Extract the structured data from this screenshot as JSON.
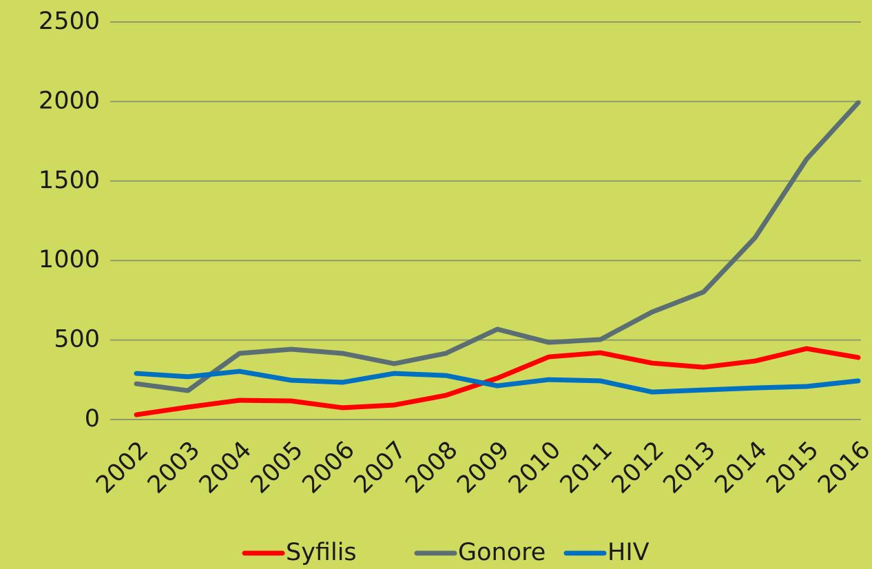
{
  "chart_data": {
    "type": "line",
    "categories": [
      "2002",
      "2003",
      "2004",
      "2005",
      "2006",
      "2007",
      "2008",
      "2009",
      "2010",
      "2011",
      "2012",
      "2013",
      "2014",
      "2015",
      "2016"
    ],
    "series": [
      {
        "name": "Syfilis",
        "color": "#ff0000",
        "values": [
          30,
          78,
          121,
          117,
          74,
          91,
          152,
          260,
          394,
          420,
          355,
          329,
          368,
          446,
          390
        ]
      },
      {
        "name": "Gonore",
        "color": "#5a6e73",
        "values": [
          225,
          182,
          416,
          442,
          416,
          351,
          416,
          568,
          485,
          503,
          676,
          802,
          1144,
          1638,
          1993
        ]
      },
      {
        "name": "HIV",
        "color": "#0070c0",
        "values": [
          290,
          269,
          303,
          247,
          234,
          290,
          277,
          212,
          251,
          243,
          173,
          186,
          199,
          208,
          243
        ]
      }
    ],
    "ylim": [
      0,
      2500
    ],
    "yticks": [
      0,
      500,
      1000,
      1500,
      2000,
      2500
    ],
    "grid": true,
    "legend": "bottom"
  }
}
